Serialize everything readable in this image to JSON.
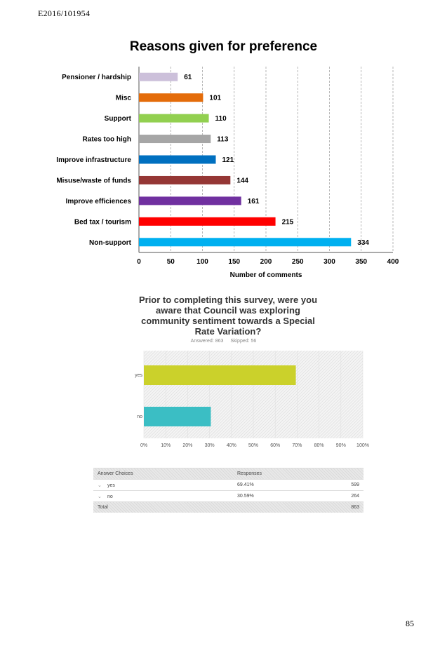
{
  "document_ref": "E2016/101954",
  "page_number": "85",
  "chart_data": [
    {
      "type": "bar",
      "orientation": "horizontal",
      "title": "Reasons given for preference",
      "xlabel": "Number of comments",
      "ylabel": "",
      "xlim": [
        0,
        400
      ],
      "x_ticks": [
        "0",
        "50",
        "100",
        "150",
        "200",
        "250",
        "300",
        "350",
        "400"
      ],
      "grid": "vertical",
      "categories": [
        "Pensioner / hardship",
        "Misc",
        "Support",
        "Rates too high",
        "Improve infrastructure",
        "Misuse/waste of funds",
        "Improve efficiences",
        "Bed tax / tourism",
        "Non-support"
      ],
      "values": [
        61,
        101,
        110,
        113,
        121,
        144,
        161,
        215,
        334
      ],
      "colors": [
        "#ccc0da",
        "#e46c0a",
        "#92d050",
        "#a6a6a6",
        "#0070c0",
        "#953735",
        "#7030a0",
        "#ff0000",
        "#00b0f0"
      ]
    },
    {
      "type": "bar",
      "orientation": "horizontal",
      "title": "Prior to completing this survey, were you aware that Council was exploring community sentiment towards a Special Rate Variation?",
      "answered_label": "Answered: 863",
      "skipped_label": "Skipped: 56",
      "xlim": [
        0,
        100
      ],
      "x_ticks": [
        "0%",
        "10%",
        "20%",
        "30%",
        "40%",
        "50%",
        "60%",
        "70%",
        "80%",
        "90%",
        "100%"
      ],
      "categories": [
        "yes",
        "no"
      ],
      "values": [
        69.41,
        30.59
      ],
      "colors": [
        "#cbd12b",
        "#3bbec4"
      ]
    }
  ],
  "response_table": {
    "headers": [
      "Answer Choices",
      "Responses",
      ""
    ],
    "rows": [
      {
        "choice": "yes",
        "percent": "69.41%",
        "count": "599"
      },
      {
        "choice": "no",
        "percent": "30.59%",
        "count": "264"
      }
    ],
    "total_label": "Total",
    "total_count": "863"
  }
}
